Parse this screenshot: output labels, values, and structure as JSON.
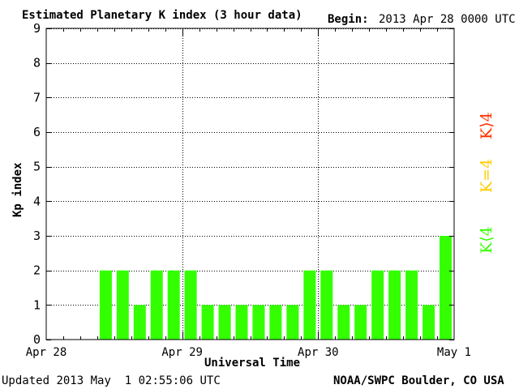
{
  "header": {
    "title": "Estimated Planetary K index (3 hour data)",
    "begin_label": "Begin:",
    "begin_value": "2013 Apr 28 0000 UTC"
  },
  "footer": {
    "updated_label": "Updated",
    "updated_value": "2013 May  1 02:55:06 UTC",
    "credit": "NOAA/SWPC Boulder, CO USA"
  },
  "legend": {
    "high": {
      "text": "K⟩4",
      "color": "#ff3300"
    },
    "equal": {
      "text": "K=4",
      "color": "#ffcc00"
    },
    "low": {
      "text": "K⟨4",
      "color": "#33ff00"
    }
  },
  "colors": {
    "bar": "#33ff00",
    "grid": "#000000"
  },
  "chart_data": {
    "type": "bar",
    "title": "Estimated Planetary K index (3 hour data)",
    "xlabel": "Universal Time",
    "ylabel": "Kp index",
    "ylim": [
      0,
      9
    ],
    "yticks": [
      0,
      1,
      2,
      3,
      4,
      5,
      6,
      7,
      8,
      9
    ],
    "xtick_labels": [
      "Apr 28",
      "Apr 29",
      "Apr 30",
      "May 1"
    ],
    "interval_hours": 3,
    "grid": true,
    "values": [
      0,
      0,
      0,
      2,
      2,
      1,
      2,
      2,
      2,
      1,
      1,
      1,
      1,
      1,
      1,
      2,
      2,
      1,
      1,
      2,
      2,
      2,
      1,
      3
    ]
  }
}
